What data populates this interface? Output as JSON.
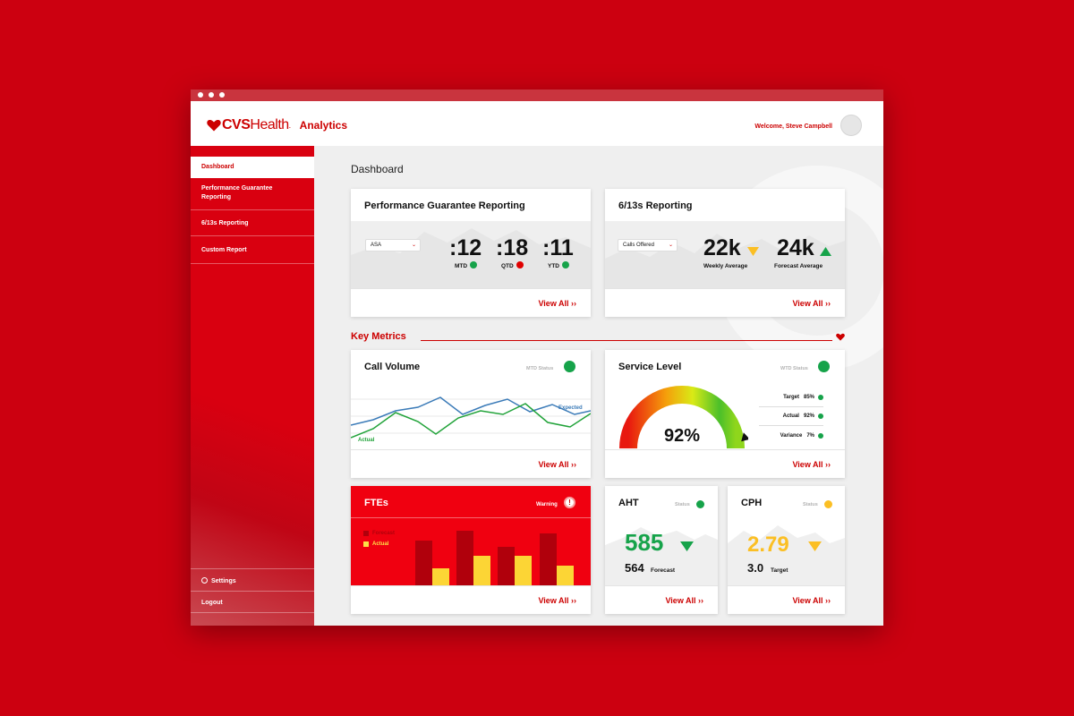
{
  "header": {
    "brand_cvs": "CVS",
    "brand_health": "Health",
    "brand_mark": ".",
    "product": "Analytics",
    "welcome": "Welcome, Steve Campbell"
  },
  "sidebar": {
    "items": [
      {
        "label": "Dashboard",
        "active": true
      },
      {
        "label": "Performance Guarantee Reporting"
      },
      {
        "label": "6/13s Reporting"
      },
      {
        "label": "Custom Report"
      }
    ],
    "settings_label": "Settings",
    "logout_label": "Logout"
  },
  "main": {
    "title": "Dashboard",
    "view_all": "View All",
    "view_all_icon": "double-chevron-right-icon",
    "pg": {
      "title": "Performance Guarantee Reporting",
      "select_value": "ASA",
      "metrics": [
        {
          "value": ":12",
          "label": "MTD",
          "status": "green"
        },
        {
          "value": ":18",
          "label": "QTD",
          "status": "red"
        },
        {
          "value": ":11",
          "label": "YTD",
          "status": "green"
        }
      ]
    },
    "r613": {
      "title": "6/13s Reporting",
      "select_value": "Calls Offered",
      "weekly_value": "22k",
      "weekly_label": "Weekly Average",
      "weekly_trend": "down",
      "forecast_value": "24k",
      "forecast_label": "Forecast Average",
      "forecast_trend": "up"
    },
    "key_metrics_label": "Key Metrics",
    "call_volume": {
      "title": "Call Volume",
      "status_label": "MTD Status",
      "status": "green",
      "expected_label": "Expected",
      "actual_label": "Actual"
    },
    "service_level": {
      "title": "Service Level",
      "status_label": "WTD Status",
      "status": "green",
      "value": "92%",
      "fraction": 0.92,
      "target_label": "Target",
      "target_value": "85%",
      "actual_label": "Actual",
      "actual_value": "92%",
      "variance_label": "Variance",
      "variance_value": "7%"
    },
    "ftes": {
      "title": "FTEs",
      "warning_label": "Warning",
      "warning_icon": "exclamation-icon",
      "legend_forecast": "Forecast",
      "legend_actual": "Actual"
    },
    "aht": {
      "title": "AHT",
      "status_label": "Status",
      "status": "green",
      "value": "585",
      "trend": "down",
      "forecast_value": "564",
      "forecast_label": "Forecast"
    },
    "cph": {
      "title": "CPH",
      "status_label": "Status",
      "status": "yellow",
      "value": "2.79",
      "trend": "down",
      "target_value": "3.0",
      "target_label": "Target"
    }
  },
  "colors": {
    "brand_red": "#cc0000",
    "green": "#16a34a",
    "yellow": "#fbbf24",
    "expected_line": "#3b7bb8",
    "actual_line": "#22a33a"
  }
}
